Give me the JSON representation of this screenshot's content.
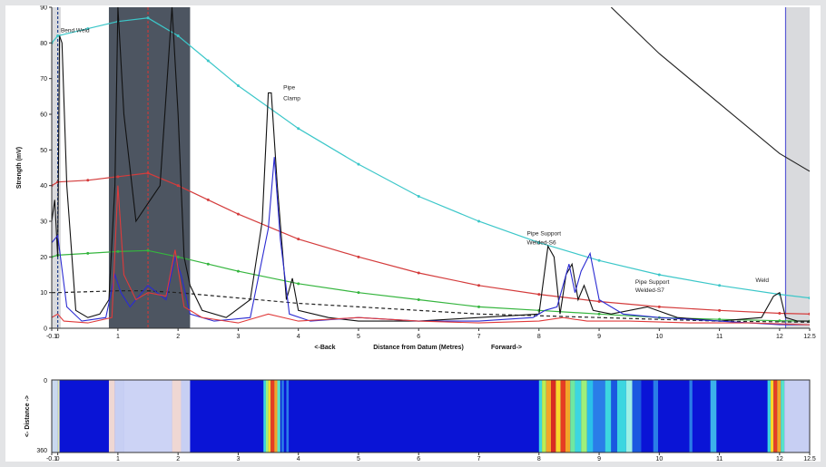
{
  "chart_data": [
    {
      "type": "line",
      "xlabel_left": "<-Back",
      "xlabel": "Distance from Datum (Metres)",
      "xlabel_right": "Forward->",
      "ylabel": "Strength (mV)",
      "xlim": [
        -0.1,
        12.5
      ],
      "ylim": [
        0,
        90
      ],
      "x_ticks": [
        "-0.1",
        "0",
        "1",
        "2",
        "3",
        "4",
        "5",
        "6",
        "7",
        "8",
        "9",
        "10",
        "11",
        "12",
        "12.5"
      ],
      "y_ticks": [
        "0",
        "10",
        "20",
        "30",
        "40",
        "50",
        "60",
        "70",
        "80",
        "90"
      ],
      "grid": false,
      "shaded_regions": [
        {
          "name": "near-field-zone",
          "x0": -0.1,
          "x1": 0.05,
          "color": "#d9dadd"
        },
        {
          "name": "excluded-zone",
          "x0": 0.85,
          "x1": 2.2,
          "color": "#4d5561"
        },
        {
          "name": "far-zone",
          "x0": 12.1,
          "x1": 12.5,
          "color": "#d9dadd"
        }
      ],
      "vertical_markers": [
        {
          "x": 0,
          "color": "#1f3f8c",
          "style": "dashed"
        },
        {
          "x": 1.5,
          "color": "#c43b3b",
          "style": "dashed"
        },
        {
          "x": 12.1,
          "color": "#5a5ad6",
          "style": "solid"
        }
      ],
      "annotations": [
        {
          "text": "Bend Weld",
          "x": 0.05,
          "y": 83
        },
        {
          "text": "Pipe",
          "x": 3.75,
          "y": 67
        },
        {
          "text": "Clamp",
          "x": 3.75,
          "y": 64
        },
        {
          "text": "Pipe Support",
          "x": 7.8,
          "y": 26
        },
        {
          "text": "Welded-S6",
          "x": 7.8,
          "y": 23.5
        },
        {
          "text": "Pipe Support",
          "x": 9.6,
          "y": 12.5
        },
        {
          "text": "Welded-S7",
          "x": 9.6,
          "y": 10.2
        },
        {
          "text": "Weld",
          "x": 11.6,
          "y": 13
        }
      ],
      "series": [
        {
          "color": "#3cc7c9",
          "style": "dotted-markers",
          "x": [
            -0.1,
            0,
            0.5,
            1,
            1.5,
            2,
            2.5,
            3,
            4,
            5,
            6,
            7,
            8,
            9,
            10,
            11,
            12,
            12.5
          ],
          "values": [
            80,
            82,
            84,
            86,
            87,
            82,
            75,
            68,
            56,
            46,
            37,
            30,
            24,
            19,
            15,
            12,
            9.5,
            8.5
          ]
        },
        {
          "color": "#d43c3c",
          "style": "dotted-markers",
          "x": [
            -0.1,
            0,
            0.5,
            1,
            1.5,
            2,
            2.5,
            3,
            4,
            5,
            6,
            7,
            8,
            9,
            10,
            11,
            12,
            12.5
          ],
          "values": [
            40,
            41,
            41.5,
            42.5,
            43.5,
            40,
            36,
            32,
            25,
            20,
            15.5,
            12,
            9.5,
            7.5,
            6,
            5,
            4.2,
            4
          ]
        },
        {
          "color": "#35b53e",
          "style": "dotted-markers",
          "x": [
            -0.1,
            0,
            0.5,
            1,
            1.5,
            2,
            2.5,
            3,
            4,
            5,
            6,
            7,
            8,
            9,
            10,
            11,
            12,
            12.5
          ],
          "values": [
            20,
            20.5,
            21,
            21.5,
            21.8,
            20,
            18,
            16,
            12.5,
            10,
            8,
            6,
            5,
            4,
            3,
            2.5,
            2.1,
            2
          ]
        },
        {
          "color": "#222222",
          "style": "dashed",
          "x": [
            -0.1,
            0,
            1,
            1.5,
            2,
            3,
            4,
            5,
            6,
            7,
            8,
            9,
            10,
            11,
            12,
            12.5
          ],
          "values": [
            10,
            10,
            10.5,
            10.5,
            10,
            8.5,
            7,
            6,
            5,
            4,
            3.5,
            3,
            2.5,
            2,
            1.8,
            1.7
          ]
        },
        {
          "color": "#222222",
          "style": "solid",
          "x": [
            9.2,
            10,
            11,
            12,
            12.5
          ],
          "values": [
            90,
            77,
            63,
            49,
            44
          ]
        },
        {
          "color": "#111111",
          "style": "solid",
          "x": [
            -0.1,
            -0.05,
            0,
            0.03,
            0.07,
            0.15,
            0.3,
            0.5,
            0.7,
            0.85,
            0.95,
            1.0,
            1.1,
            1.3,
            1.5,
            1.7,
            1.9,
            2.0,
            2.1,
            2.2,
            2.4,
            2.8,
            3.2,
            3.4,
            3.5,
            3.55,
            3.65,
            3.8,
            3.9,
            4.0,
            4.5,
            5,
            6,
            7,
            8.0,
            8.15,
            8.25,
            8.35,
            8.45,
            8.55,
            8.65,
            8.75,
            8.9,
            9.2,
            9.8,
            10.3,
            11.0,
            11.7,
            11.9,
            12.0,
            12.1,
            12.3,
            12.5
          ],
          "values": [
            30,
            36,
            20,
            82,
            80,
            40,
            5,
            3,
            4,
            8,
            40,
            90,
            60,
            30,
            35,
            40,
            90,
            60,
            20,
            12,
            5,
            3,
            8,
            30,
            66,
            66,
            40,
            8,
            14,
            5,
            3,
            2,
            2,
            3,
            4,
            23,
            20,
            4,
            15,
            18,
            8,
            12,
            5,
            4,
            6,
            3,
            2,
            3,
            9,
            10,
            3,
            2,
            2
          ]
        },
        {
          "color": "#2b2bd2",
          "style": "solid",
          "x": [
            -0.1,
            0,
            0.15,
            0.4,
            0.8,
            0.95,
            1.05,
            1.2,
            1.5,
            1.8,
            1.95,
            2.05,
            2.2,
            2.6,
            3.2,
            3.5,
            3.6,
            3.7,
            3.85,
            4.2,
            5,
            6,
            7,
            7.9,
            8.1,
            8.3,
            8.5,
            8.6,
            8.7,
            8.85,
            9.0,
            9.4,
            10,
            11,
            12,
            12.5
          ],
          "values": [
            24,
            26,
            6,
            2,
            3,
            15,
            10,
            6,
            12,
            8,
            20,
            15,
            4,
            2,
            3,
            28,
            48,
            25,
            4,
            2,
            3,
            2,
            2,
            3,
            5,
            6,
            18,
            10,
            16,
            21,
            8,
            4,
            3,
            2,
            1,
            1
          ]
        },
        {
          "color": "#e03a3a",
          "style": "solid",
          "x": [
            -0.1,
            0,
            0.1,
            0.5,
            0.9,
            1.0,
            1.1,
            1.3,
            1.5,
            1.8,
            1.95,
            2.1,
            2.4,
            3,
            3.5,
            4,
            5,
            6,
            7,
            8,
            8.4,
            8.8,
            9.5,
            10.5,
            11.5,
            12.5
          ],
          "values": [
            3,
            4,
            2,
            1.5,
            3,
            40,
            15,
            8,
            10,
            9,
            22,
            6,
            3,
            1.5,
            4,
            2,
            3,
            2,
            1.5,
            2,
            3,
            2,
            2,
            1.5,
            1.5,
            1
          ]
        }
      ]
    },
    {
      "type": "heatmap",
      "ylabel": "<- Distance ->",
      "y_ticks": [
        "0",
        "360"
      ],
      "x_ticks": [
        "-0.1",
        "0",
        "1",
        "2",
        "3",
        "4",
        "5",
        "6",
        "7",
        "8",
        "9",
        "10",
        "11",
        "12",
        "12.5"
      ],
      "xlim": [
        -0.1,
        12.5
      ],
      "background_color": "#0a14d6",
      "bands": [
        {
          "x0": -0.1,
          "x1": 0.0,
          "color": "#c9d8ef"
        },
        {
          "x0": 0.0,
          "x1": 0.03,
          "color": "#dfe8b0"
        },
        {
          "x0": 0.85,
          "x1": 0.95,
          "color": "#efd7d3"
        },
        {
          "x0": 0.95,
          "x1": 1.1,
          "color": "#c7cff3"
        },
        {
          "x0": 1.1,
          "x1": 1.9,
          "color": "#ccd3f5"
        },
        {
          "x0": 1.9,
          "x1": 2.05,
          "color": "#efd7d3"
        },
        {
          "x0": 2.05,
          "x1": 2.2,
          "color": "#c7cff3"
        },
        {
          "x0": 3.42,
          "x1": 3.46,
          "color": "#3cd6e0"
        },
        {
          "x0": 3.46,
          "x1": 3.5,
          "color": "#9ef07a"
        },
        {
          "x0": 3.5,
          "x1": 3.54,
          "color": "#f9d72a"
        },
        {
          "x0": 3.54,
          "x1": 3.6,
          "color": "#e63c22"
        },
        {
          "x0": 3.6,
          "x1": 3.65,
          "color": "#f2a528"
        },
        {
          "x0": 3.65,
          "x1": 3.7,
          "color": "#57e2c8"
        },
        {
          "x0": 3.72,
          "x1": 3.76,
          "color": "#2a7de8"
        },
        {
          "x0": 3.8,
          "x1": 3.84,
          "color": "#2a7de8"
        },
        {
          "x0": 8.0,
          "x1": 8.05,
          "color": "#3cd6e0"
        },
        {
          "x0": 8.05,
          "x1": 8.12,
          "color": "#b8ef54"
        },
        {
          "x0": 8.12,
          "x1": 8.2,
          "color": "#f2a528"
        },
        {
          "x0": 8.2,
          "x1": 8.28,
          "color": "#d92c22"
        },
        {
          "x0": 8.28,
          "x1": 8.36,
          "color": "#f9d72a"
        },
        {
          "x0": 8.36,
          "x1": 8.44,
          "color": "#e63c22"
        },
        {
          "x0": 8.44,
          "x1": 8.52,
          "color": "#f2a528"
        },
        {
          "x0": 8.52,
          "x1": 8.6,
          "color": "#6fe8a0"
        },
        {
          "x0": 8.6,
          "x1": 8.7,
          "color": "#3cd6e0"
        },
        {
          "x0": 8.7,
          "x1": 8.8,
          "color": "#9ef07a"
        },
        {
          "x0": 8.8,
          "x1": 8.9,
          "color": "#2ac0ea"
        },
        {
          "x0": 8.9,
          "x1": 9.1,
          "color": "#2a7de8"
        },
        {
          "x0": 9.1,
          "x1": 9.2,
          "color": "#3cd6e0"
        },
        {
          "x0": 9.2,
          "x1": 9.3,
          "color": "#1a58e0"
        },
        {
          "x0": 9.3,
          "x1": 9.45,
          "color": "#3cd6e0"
        },
        {
          "x0": 9.45,
          "x1": 9.55,
          "color": "#9ef0e6"
        },
        {
          "x0": 9.55,
          "x1": 9.7,
          "color": "#1a58e0"
        },
        {
          "x0": 9.9,
          "x1": 9.98,
          "color": "#2a7de8"
        },
        {
          "x0": 10.5,
          "x1": 10.55,
          "color": "#2a7de8"
        },
        {
          "x0": 10.85,
          "x1": 10.95,
          "color": "#3cb0ea"
        },
        {
          "x0": 11.8,
          "x1": 11.85,
          "color": "#3cd6e0"
        },
        {
          "x0": 11.85,
          "x1": 11.9,
          "color": "#f9d72a"
        },
        {
          "x0": 11.9,
          "x1": 11.96,
          "color": "#e63c22"
        },
        {
          "x0": 11.96,
          "x1": 12.02,
          "color": "#f2a528"
        },
        {
          "x0": 12.02,
          "x1": 12.08,
          "color": "#57e2c8"
        },
        {
          "x0": 12.08,
          "x1": 12.5,
          "color": "#c7cff3"
        }
      ]
    }
  ]
}
